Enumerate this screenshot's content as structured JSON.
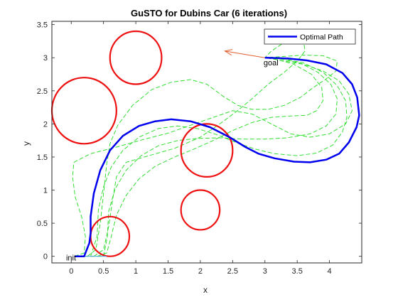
{
  "chart_data": {
    "type": "line",
    "title": "GuSTO for Dubins Car (6 iterations)",
    "xlabel": "x",
    "ylabel": "y",
    "xlim": [
      -0.3,
      4.5
    ],
    "ylim": [
      -0.1,
      3.55
    ],
    "xticks": [
      0,
      0.5,
      1,
      1.5,
      2,
      2.5,
      3,
      3.5,
      4
    ],
    "xtick_labels": [
      "0",
      "0.5",
      "1",
      "1.5",
      "2",
      "2.5",
      "3",
      "3.5",
      "4"
    ],
    "yticks": [
      0,
      0.5,
      1,
      1.5,
      2,
      2.5,
      3,
      3.5
    ],
    "ytick_labels": [
      "0",
      "0.5",
      "1",
      "1.5",
      "2",
      "2.5",
      "3",
      "3.5"
    ],
    "grid": false,
    "legend": {
      "position": "top-right",
      "entries": [
        "Optimal Path"
      ]
    },
    "colors": {
      "optimal": "#0000ee",
      "iterations": "#33dd33",
      "obstacles": "#ee1111",
      "arrows": "#e06030",
      "init_line": "#4f9fe0"
    },
    "obstacles": [
      {
        "cx": 0.2,
        "cy": 2.2,
        "r": 0.5
      },
      {
        "cx": 1.0,
        "cy": 3.0,
        "r": 0.4
      },
      {
        "cx": 2.1,
        "cy": 1.6,
        "r": 0.4
      },
      {
        "cx": 2.0,
        "cy": 0.7,
        "r": 0.3
      },
      {
        "cx": 0.6,
        "cy": 0.3,
        "r": 0.3
      }
    ],
    "optimal_path": {
      "name": "Optimal Path",
      "points": [
        [
          0.05,
          0.0
        ],
        [
          0.2,
          0.0
        ],
        [
          0.28,
          0.2
        ],
        [
          0.3,
          0.35
        ],
        [
          0.3,
          0.6
        ],
        [
          0.35,
          0.95
        ],
        [
          0.45,
          1.3
        ],
        [
          0.6,
          1.6
        ],
        [
          0.8,
          1.82
        ],
        [
          1.05,
          1.97
        ],
        [
          1.3,
          2.04
        ],
        [
          1.55,
          2.07
        ],
        [
          1.85,
          2.04
        ],
        [
          2.15,
          1.95
        ],
        [
          2.45,
          1.8
        ],
        [
          2.7,
          1.65
        ],
        [
          2.9,
          1.55
        ],
        [
          3.15,
          1.48
        ],
        [
          3.45,
          1.43
        ],
        [
          3.7,
          1.42
        ],
        [
          3.95,
          1.46
        ],
        [
          4.15,
          1.55
        ],
        [
          4.3,
          1.72
        ],
        [
          4.42,
          1.95
        ],
        [
          4.46,
          2.13
        ],
        [
          4.43,
          2.4
        ],
        [
          4.35,
          2.6
        ],
        [
          4.2,
          2.77
        ],
        [
          3.95,
          2.9
        ],
        [
          3.65,
          2.96
        ],
        [
          3.35,
          2.99
        ],
        [
          3.0,
          3.0
        ]
      ]
    },
    "iterations": [
      [
        [
          0.1,
          0.0
        ],
        [
          0.3,
          0.0
        ],
        [
          0.4,
          0.3
        ],
        [
          0.42,
          0.7
        ],
        [
          0.5,
          1.05
        ],
        [
          0.62,
          1.35
        ],
        [
          0.8,
          1.6
        ],
        [
          1.05,
          1.8
        ],
        [
          1.35,
          1.93
        ],
        [
          1.65,
          1.97
        ],
        [
          1.95,
          1.93
        ],
        [
          2.25,
          1.84
        ],
        [
          2.55,
          1.72
        ],
        [
          2.85,
          1.62
        ],
        [
          3.15,
          1.55
        ],
        [
          3.5,
          1.52
        ],
        [
          3.8,
          1.56
        ],
        [
          4.05,
          1.68
        ],
        [
          4.2,
          1.88
        ],
        [
          4.27,
          2.1
        ],
        [
          4.25,
          2.35
        ],
        [
          4.12,
          2.58
        ],
        [
          3.9,
          2.78
        ],
        [
          3.6,
          2.92
        ],
        [
          3.3,
          2.98
        ],
        [
          3.0,
          3.0
        ]
      ],
      [
        [
          0.3,
          0.0
        ],
        [
          0.5,
          0.0
        ],
        [
          0.56,
          0.3
        ],
        [
          0.58,
          0.68
        ],
        [
          0.68,
          1.02
        ],
        [
          0.85,
          1.3
        ],
        [
          1.08,
          1.52
        ],
        [
          1.35,
          1.67
        ],
        [
          1.65,
          1.75
        ],
        [
          1.95,
          1.78
        ],
        [
          2.3,
          1.79
        ],
        [
          2.65,
          1.77
        ],
        [
          3.0,
          1.77
        ],
        [
          3.35,
          1.79
        ],
        [
          3.7,
          1.85
        ],
        [
          3.95,
          1.97
        ],
        [
          4.1,
          2.15
        ],
        [
          4.12,
          2.38
        ],
        [
          4.02,
          2.6
        ],
        [
          3.82,
          2.78
        ],
        [
          3.55,
          2.92
        ],
        [
          3.25,
          2.98
        ],
        [
          3.0,
          3.0
        ]
      ],
      [
        [
          0.4,
          0.0
        ],
        [
          0.55,
          0.05
        ],
        [
          0.62,
          0.3
        ],
        [
          0.7,
          0.62
        ],
        [
          0.85,
          0.92
        ],
        [
          1.05,
          1.17
        ],
        [
          1.3,
          1.36
        ],
        [
          1.6,
          1.5
        ],
        [
          1.9,
          1.62
        ],
        [
          2.2,
          1.75
        ],
        [
          2.5,
          1.9
        ],
        [
          2.8,
          2.02
        ],
        [
          3.1,
          2.1
        ],
        [
          3.4,
          2.12
        ],
        [
          3.65,
          2.13
        ],
        [
          3.8,
          2.2
        ],
        [
          3.9,
          2.35
        ],
        [
          3.88,
          2.55
        ],
        [
          3.72,
          2.75
        ],
        [
          3.45,
          2.9
        ],
        [
          3.2,
          2.97
        ],
        [
          3.0,
          3.0
        ]
      ],
      [
        [
          0.05,
          0.0
        ],
        [
          0.2,
          0.05
        ],
        [
          0.22,
          0.3
        ],
        [
          0.16,
          0.6
        ],
        [
          0.06,
          0.9
        ],
        [
          0.02,
          1.2
        ],
        [
          0.04,
          1.42
        ],
        [
          0.3,
          1.55
        ],
        [
          0.7,
          1.65
        ],
        [
          1.1,
          1.76
        ],
        [
          1.5,
          1.86
        ],
        [
          1.85,
          1.98
        ],
        [
          2.2,
          2.1
        ],
        [
          2.5,
          2.2
        ],
        [
          2.8,
          2.15
        ],
        [
          3.1,
          2.0
        ],
        [
          3.4,
          1.85
        ],
        [
          3.7,
          1.8
        ],
        [
          4.0,
          1.85
        ],
        [
          4.25,
          2.0
        ],
        [
          4.35,
          2.2
        ],
        [
          4.3,
          2.45
        ],
        [
          4.15,
          2.65
        ],
        [
          3.9,
          2.8
        ],
        [
          3.6,
          2.9
        ],
        [
          3.25,
          2.96
        ],
        [
          3.0,
          3.0
        ]
      ],
      [
        [
          0.25,
          0.0
        ],
        [
          0.38,
          0.1
        ],
        [
          0.45,
          0.5
        ],
        [
          0.5,
          0.95
        ],
        [
          0.55,
          1.4
        ],
        [
          0.6,
          1.7
        ],
        [
          0.72,
          1.98
        ],
        [
          0.95,
          2.28
        ],
        [
          1.25,
          2.52
        ],
        [
          1.55,
          2.63
        ],
        [
          1.85,
          2.67
        ],
        [
          2.1,
          2.6
        ],
        [
          2.35,
          2.42
        ],
        [
          2.58,
          2.28
        ],
        [
          2.8,
          2.22
        ],
        [
          3.05,
          2.22
        ],
        [
          3.3,
          2.28
        ],
        [
          3.55,
          2.4
        ],
        [
          3.75,
          2.55
        ],
        [
          3.95,
          2.68
        ],
        [
          4.1,
          2.8
        ],
        [
          4.12,
          2.95
        ],
        [
          3.9,
          3.03
        ],
        [
          3.6,
          3.04
        ],
        [
          3.3,
          3.02
        ],
        [
          3.0,
          3.0
        ]
      ],
      [
        [
          0.35,
          0.0
        ],
        [
          0.5,
          0.1
        ],
        [
          0.58,
          0.45
        ],
        [
          0.64,
          0.85
        ],
        [
          0.7,
          1.2
        ],
        [
          0.85,
          1.42
        ],
        [
          1.2,
          1.52
        ],
        [
          1.6,
          1.63
        ],
        [
          2.0,
          1.8
        ],
        [
          2.3,
          2.0
        ],
        [
          2.55,
          2.18
        ],
        [
          2.8,
          2.38
        ],
        [
          3.05,
          2.6
        ],
        [
          3.3,
          2.78
        ],
        [
          3.5,
          2.95
        ],
        [
          3.62,
          3.1
        ],
        [
          3.6,
          3.25
        ],
        [
          3.45,
          3.3
        ],
        [
          3.25,
          3.2
        ],
        [
          3.1,
          3.1
        ],
        [
          3.0,
          3.0
        ]
      ]
    ],
    "annotations": [
      {
        "text": "goal",
        "x": 2.98,
        "y": 2.93
      },
      {
        "text": "init",
        "x": -0.08,
        "y": -0.02
      }
    ],
    "goal_arrow": {
      "from": [
        3.0,
        3.0
      ],
      "to": [
        2.38,
        3.1
      ]
    },
    "init_line": {
      "from": [
        0.05,
        0.0
      ],
      "to": [
        0.55,
        0.0
      ]
    }
  }
}
